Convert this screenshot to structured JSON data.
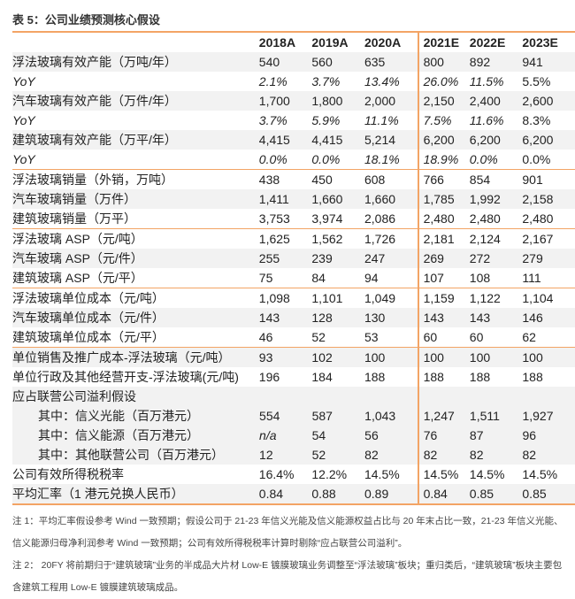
{
  "title": "表 5：公司业绩预测核心假设",
  "accent_color": "#F3A465",
  "columns": [
    "2018A",
    "2019A",
    "2020A",
    "2021E",
    "2022E",
    "2023E"
  ],
  "rows": [
    {
      "label": "浮法玻璃有效产能（万吨/年）",
      "values": [
        "540",
        "560",
        "635",
        "800",
        "892",
        "941"
      ],
      "shade": true
    },
    {
      "label": "YoY",
      "italic": true,
      "values": [
        "2.1%",
        "3.7%",
        "13.4%",
        "26.0%",
        "11.5%",
        "5.5%"
      ]
    },
    {
      "label": "汽车玻璃有效产能（万件/年）",
      "values": [
        "1,700",
        "1,800",
        "2,000",
        "2,150",
        "2,400",
        "2,600"
      ],
      "shade": true
    },
    {
      "label": "YoY",
      "italic": true,
      "values": [
        "3.7%",
        "5.9%",
        "11.1%",
        "7.5%",
        "11.6%",
        "8.3%"
      ]
    },
    {
      "label": "建筑玻璃有效产能（万平/年）",
      "values": [
        "4,415",
        "4,415",
        "5,214",
        "6,200",
        "6,200",
        "6,200"
      ],
      "shade": true
    },
    {
      "label": "YoY",
      "italic": true,
      "values": [
        "0.0%",
        "0.0%",
        "18.1%",
        "18.9%",
        "0.0%",
        "0.0%"
      ]
    },
    {
      "label": "浮法玻璃销量（外销，万吨）",
      "values": [
        "438",
        "450",
        "608",
        "766",
        "854",
        "901"
      ],
      "section": true
    },
    {
      "label": "汽车玻璃销量（万件）",
      "values": [
        "1,411",
        "1,660",
        "1,660",
        "1,785",
        "1,992",
        "2,158"
      ],
      "shade": true
    },
    {
      "label": "建筑玻璃销量（万平）",
      "values": [
        "3,753",
        "3,974",
        "2,086",
        "2,480",
        "2,480",
        "2,480"
      ]
    },
    {
      "label": "浮法玻璃 ASP（元/吨）",
      "values": [
        "1,625",
        "1,562",
        "1,726",
        "2,181",
        "2,124",
        "2,167"
      ],
      "section": true
    },
    {
      "label": "汽车玻璃 ASP（元/件）",
      "values": [
        "255",
        "239",
        "247",
        "269",
        "272",
        "279"
      ],
      "shade": true
    },
    {
      "label": "建筑玻璃 ASP（元/平）",
      "values": [
        "75",
        "84",
        "94",
        "107",
        "108",
        "111"
      ]
    },
    {
      "label": "浮法玻璃单位成本（元/吨）",
      "values": [
        "1,098",
        "1,101",
        "1,049",
        "1,159",
        "1,122",
        "1,104"
      ],
      "section": true
    },
    {
      "label": "汽车玻璃单位成本（元/件）",
      "values": [
        "143",
        "128",
        "130",
        "143",
        "143",
        "146"
      ],
      "shade": true
    },
    {
      "label": "建筑玻璃单位成本（元/平）",
      "values": [
        "46",
        "52",
        "53",
        "60",
        "60",
        "62"
      ]
    },
    {
      "label": "单位销售及推广成本-浮法玻璃（元/吨）",
      "values": [
        "93",
        "102",
        "100",
        "100",
        "100",
        "100"
      ],
      "section": true,
      "shade": true
    },
    {
      "label": "单位行政及其他经营开支-浮法玻璃(元/吨)",
      "values": [
        "196",
        "184",
        "188",
        "188",
        "188",
        "188"
      ]
    },
    {
      "label": "应占联营公司溢利假设",
      "values": [
        "",
        "",
        "",
        "",
        "",
        ""
      ],
      "shade": true
    },
    {
      "label": "其中：信义光能（百万港元）",
      "indent": true,
      "values": [
        "554",
        "587",
        "1,043",
        "1,247",
        "1,511",
        "1,927"
      ],
      "shade": true
    },
    {
      "label": "其中：信义能源（百万港元）",
      "indent": true,
      "values": [
        "n/a",
        "54",
        "56",
        "76",
        "87",
        "96"
      ],
      "shade": true,
      "italic_first": true
    },
    {
      "label": "其中：其他联营公司（百万港元）",
      "indent": true,
      "values": [
        "12",
        "52",
        "82",
        "82",
        "82",
        "82"
      ],
      "shade": true
    },
    {
      "label": "公司有效所得税税率",
      "values": [
        "16.4%",
        "12.2%",
        "14.5%",
        "14.5%",
        "14.5%",
        "14.5%"
      ]
    },
    {
      "label": "平均汇率（1 港元兑换人民币）",
      "values": [
        "0.84",
        "0.88",
        "0.89",
        "0.84",
        "0.85",
        "0.85"
      ],
      "shade": true
    }
  ],
  "notes": [
    "注 1：平均汇率假设参考 Wind 一致预期；假设公司于 21-23 年信义光能及信义能源权益占比与 20 年末占比一致，21-23 年信义光能、信义能源归母净利润参考 Wind 一致预期；公司有效所得税税率计算时剔除“应占联营公司溢利”。",
    "注 2： 20FY 将前期归于“建筑玻璃”业务的半成品大片材 Low-E 镀膜玻璃业务调整至“浮法玻璃”板块；重归类后，“建筑玻璃”板块主要包含建筑工程用 Low-E 镀膜建筑玻璃成品。"
  ]
}
